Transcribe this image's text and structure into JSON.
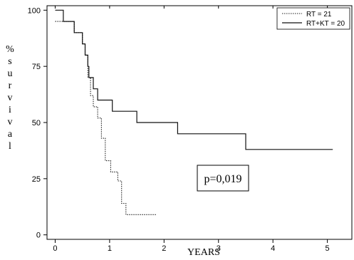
{
  "chart_data": {
    "type": "line",
    "subtype": "kaplan-meier step curves",
    "xlabel": "YEARS",
    "ylabel": "% survival",
    "ylabel_letters": [
      "%",
      "s",
      "u",
      "r",
      "v",
      "i",
      "v",
      "a",
      "l"
    ],
    "xlim": [
      -0.15,
      5.45
    ],
    "ylim": [
      -2,
      102
    ],
    "xticks": [
      0,
      1,
      2,
      3,
      4,
      5
    ],
    "yticks": [
      0,
      25,
      50,
      75,
      100
    ],
    "grid": false,
    "legend_position": "top-right",
    "annotation": "p=0,019",
    "series": [
      {
        "name": "RT = 21",
        "style": "dotted",
        "color": "#222222",
        "x": [
          0,
          0.35,
          0.5,
          0.55,
          0.6,
          0.65,
          0.7,
          0.78,
          0.85,
          0.92,
          1.02,
          1.15,
          1.22,
          1.3,
          1.85
        ],
        "y": [
          95,
          90,
          85,
          80,
          70,
          62,
          57,
          52,
          43,
          33,
          28,
          24,
          14,
          9,
          9
        ]
      },
      {
        "name": "RT+KT = 20",
        "style": "solid",
        "color": "#111111",
        "x": [
          0,
          0.15,
          0.35,
          0.5,
          0.55,
          0.6,
          0.62,
          0.7,
          0.78,
          0.9,
          1.05,
          1.5,
          2.25,
          3.5,
          5.1
        ],
        "y": [
          100,
          95,
          90,
          85,
          80,
          75,
          70,
          65,
          60,
          60,
          55,
          50,
          45,
          38,
          38
        ]
      }
    ]
  }
}
